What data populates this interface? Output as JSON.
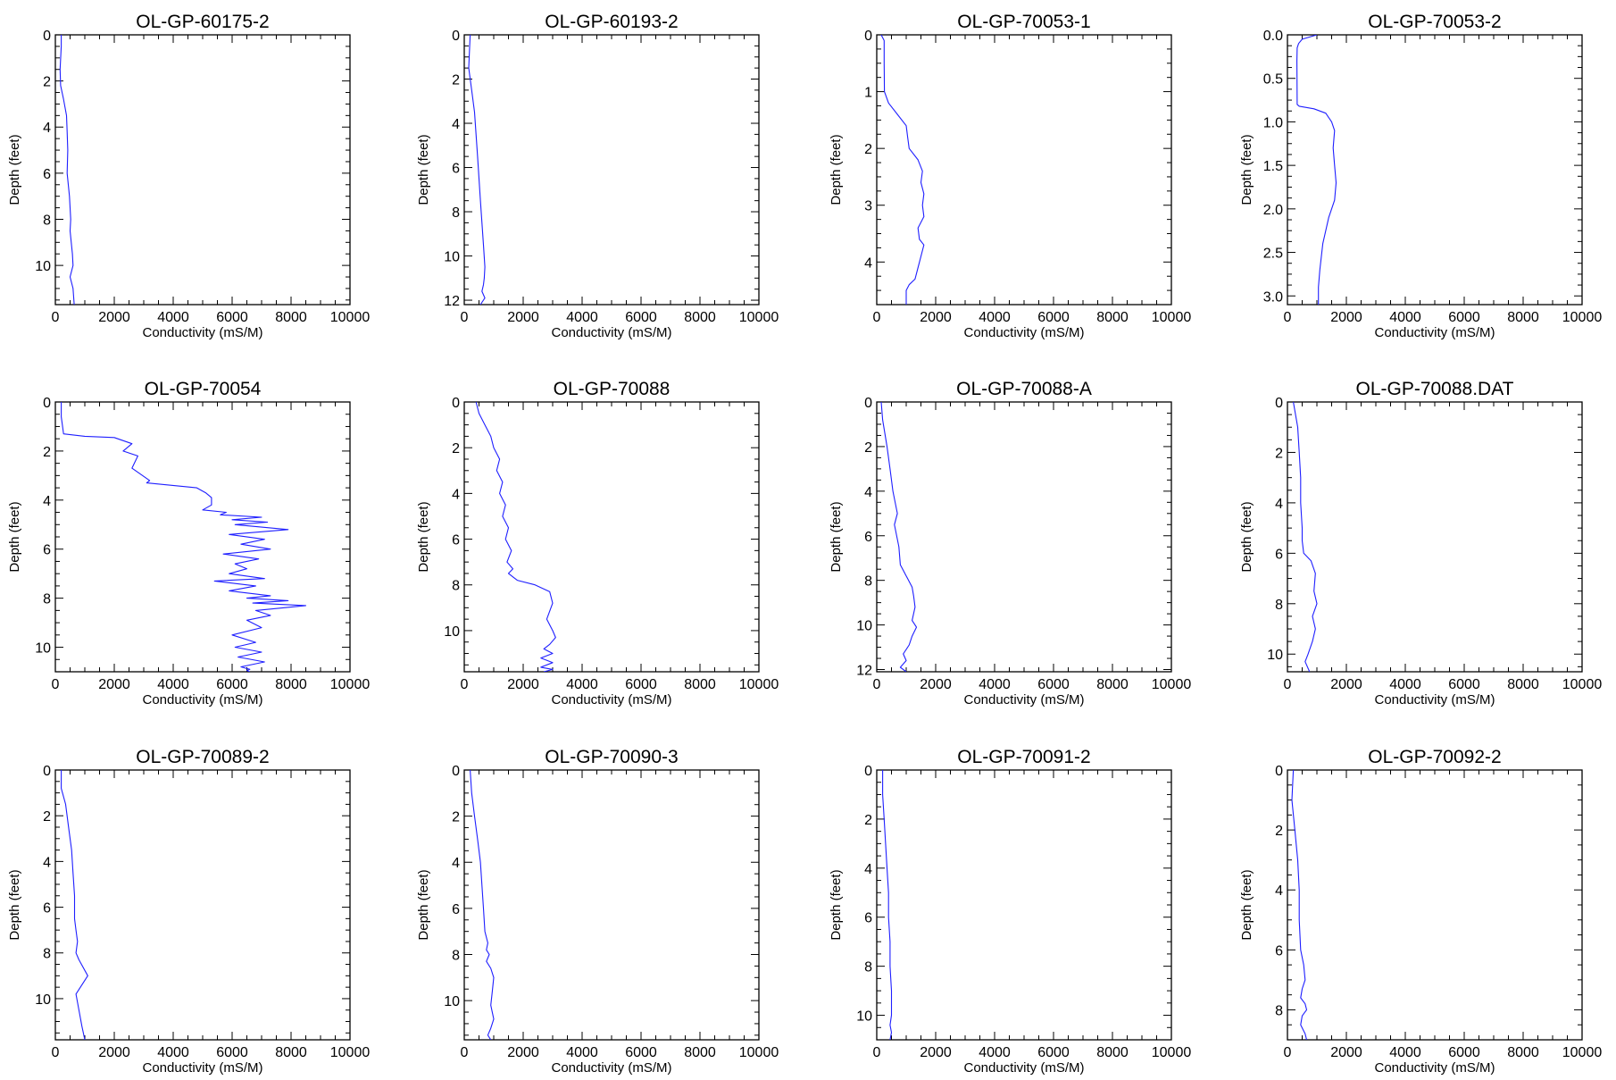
{
  "colors": {
    "line": "#1f1fff",
    "axis": "#000000",
    "background": "#ffffff"
  },
  "layout": {
    "rows": 3,
    "cols": 4
  },
  "chart_data": [
    {
      "type": "line",
      "title": "OL-GP-60175-2",
      "xlabel": "Conductivity (mS/M)",
      "ylabel": "Depth (feet)",
      "xlim": [
        0,
        10000
      ],
      "ylim": [
        0,
        11.7
      ],
      "xticks": [
        "0",
        "2000",
        "4000",
        "6000",
        "8000",
        "10000"
      ],
      "yticks": [
        "0",
        "2",
        "4",
        "6",
        "8",
        "10"
      ],
      "ytick_values": [
        0,
        2,
        4,
        6,
        8,
        10
      ],
      "series": [
        {
          "x": [
            200,
            200,
            160,
            180,
            280,
            380,
            400,
            420,
            400,
            480,
            520,
            500,
            580,
            600,
            500,
            600,
            640
          ],
          "y": [
            0,
            0.5,
            1.5,
            2.2,
            2.8,
            3.5,
            4.2,
            5,
            6,
            7,
            8,
            8.5,
            9.5,
            10,
            10.5,
            11,
            11.7
          ]
        }
      ]
    },
    {
      "type": "line",
      "title": "OL-GP-60193-2",
      "xlabel": "Conductivity (mS/M)",
      "ylabel": "Depth (feet)",
      "xlim": [
        0,
        10000
      ],
      "ylim": [
        0,
        12.2
      ],
      "xticks": [
        "0",
        "2000",
        "4000",
        "6000",
        "8000",
        "10000"
      ],
      "yticks": [
        "0",
        "2",
        "4",
        "6",
        "8",
        "10",
        "12"
      ],
      "ytick_values": [
        0,
        2,
        4,
        6,
        8,
        10,
        12
      ],
      "series": [
        {
          "x": [
            200,
            150,
            250,
            350,
            400,
            450,
            500,
            550,
            600,
            650,
            700,
            680,
            650,
            600,
            700,
            550
          ],
          "y": [
            0,
            1.5,
            2.5,
            3.5,
            4.5,
            5.5,
            6.5,
            7.5,
            8.5,
            9.5,
            10.5,
            11,
            11.3,
            11.6,
            11.9,
            12.2
          ]
        }
      ]
    },
    {
      "type": "line",
      "title": "OL-GP-70053-1",
      "xlabel": "Conductivity (mS/M)",
      "ylabel": "Depth (feet)",
      "xlim": [
        0,
        10000
      ],
      "ylim": [
        0,
        4.75
      ],
      "xticks": [
        "0",
        "2000",
        "4000",
        "6000",
        "8000",
        "10000"
      ],
      "yticks": [
        "0",
        "1",
        "2",
        "3",
        "4"
      ],
      "ytick_values": [
        0,
        1,
        2,
        3,
        4
      ],
      "series": [
        {
          "x": [
            150,
            250,
            250,
            260,
            400,
            700,
            1000,
            1050,
            1100,
            1400,
            1550,
            1500,
            1600,
            1550,
            1600,
            1400,
            1450,
            1600,
            1500,
            1400,
            1300,
            1100,
            1000,
            1000
          ],
          "y": [
            0,
            0.1,
            0.5,
            1.0,
            1.2,
            1.4,
            1.6,
            1.8,
            2.0,
            2.2,
            2.4,
            2.6,
            2.8,
            3.0,
            3.2,
            3.4,
            3.6,
            3.7,
            3.9,
            4.1,
            4.3,
            4.4,
            4.5,
            4.75
          ]
        }
      ]
    },
    {
      "type": "line",
      "title": "OL-GP-70053-2",
      "xlabel": "Conductivity (mS/M)",
      "ylabel": "Depth (feet)",
      "xlim": [
        0,
        10000
      ],
      "ylim": [
        0,
        3.1
      ],
      "xticks": [
        "0",
        "2000",
        "4000",
        "6000",
        "8000",
        "10000"
      ],
      "yticks": [
        "0.0",
        "0.5",
        "1.0",
        "1.5",
        "2.0",
        "2.5",
        "3.0"
      ],
      "ytick_values": [
        0,
        0.5,
        1,
        1.5,
        2,
        2.5,
        3
      ],
      "series": [
        {
          "x": [
            1000,
            500,
            380,
            330,
            320,
            330,
            400,
            900,
            1300,
            1500,
            1600,
            1550,
            1600,
            1650,
            1600,
            1400,
            1200,
            1100,
            1050,
            1050
          ],
          "y": [
            0,
            0.05,
            0.1,
            0.15,
            0.3,
            0.8,
            0.82,
            0.85,
            0.9,
            1.0,
            1.1,
            1.3,
            1.5,
            1.7,
            1.9,
            2.1,
            2.4,
            2.7,
            2.9,
            3.1
          ]
        }
      ]
    },
    {
      "type": "line",
      "title": "OL-GP-70054",
      "xlabel": "Conductivity (mS/M)",
      "ylabel": "Depth (feet)",
      "xlim": [
        0,
        10000
      ],
      "ylim": [
        0,
        11
      ],
      "xticks": [
        "0",
        "2000",
        "4000",
        "6000",
        "8000",
        "10000"
      ],
      "yticks": [
        "0",
        "2",
        "4",
        "6",
        "8",
        "10"
      ],
      "ytick_values": [
        0,
        2,
        4,
        6,
        8,
        10
      ],
      "series": [
        {
          "x": [
            200,
            200,
            280,
            1000,
            2000,
            2600,
            2300,
            2800,
            2600,
            3200,
            3100,
            4800,
            5100,
            5300,
            5300,
            5000,
            5800,
            5600,
            7000,
            6000,
            7200,
            6100,
            7900,
            5900,
            7100,
            6300,
            7300,
            5700,
            6900,
            6100,
            6500,
            5900,
            7100,
            5400,
            6800,
            5900,
            7300,
            6500,
            7900,
            6700,
            8500,
            6800,
            7300,
            6500,
            7000,
            6000,
            6800,
            6100,
            7000,
            6200,
            7100,
            6300,
            6600,
            6500,
            6600
          ],
          "y": [
            0,
            0.6,
            1.3,
            1.4,
            1.45,
            1.7,
            2.0,
            2.2,
            2.7,
            3.2,
            3.3,
            3.5,
            3.7,
            3.9,
            4.2,
            4.4,
            4.5,
            4.6,
            4.7,
            4.8,
            4.9,
            5.0,
            5.2,
            5.4,
            5.6,
            5.8,
            6.0,
            6.2,
            6.4,
            6.6,
            6.8,
            7.0,
            7.2,
            7.3,
            7.5,
            7.7,
            7.9,
            8.0,
            8.1,
            8.2,
            8.3,
            8.5,
            8.7,
            8.9,
            9.2,
            9.5,
            9.8,
            10.0,
            10.2,
            10.4,
            10.6,
            10.8,
            10.9,
            10.95,
            11.0
          ]
        }
      ]
    },
    {
      "type": "line",
      "title": "OL-GP-70088",
      "xlabel": "Conductivity (mS/M)",
      "ylabel": "Depth (feet)",
      "xlim": [
        0,
        10000
      ],
      "ylim": [
        0,
        11.8
      ],
      "xticks": [
        "0",
        "2000",
        "4000",
        "6000",
        "8000",
        "10000"
      ],
      "yticks": [
        "0",
        "2",
        "4",
        "6",
        "8",
        "10"
      ],
      "ytick_values": [
        0,
        2,
        4,
        6,
        8,
        10
      ],
      "series": [
        {
          "x": [
            400,
            500,
            700,
            900,
            1000,
            1200,
            1100,
            1300,
            1200,
            1400,
            1300,
            1500,
            1400,
            1600,
            1450,
            1650,
            1500,
            1700,
            1800,
            2400,
            2900,
            3000,
            2800,
            3000,
            3100,
            2900,
            2700,
            3000,
            2600,
            3000,
            2600,
            3000,
            2700
          ],
          "y": [
            0,
            0.5,
            1.0,
            1.5,
            2.0,
            2.5,
            3.0,
            3.5,
            4.0,
            4.5,
            5.0,
            5.5,
            6.0,
            6.5,
            7.0,
            7.3,
            7.5,
            7.7,
            7.8,
            8.0,
            8.3,
            8.8,
            9.5,
            10.0,
            10.3,
            10.6,
            10.8,
            11.0,
            11.2,
            11.4,
            11.6,
            11.7,
            11.8
          ]
        }
      ]
    },
    {
      "type": "line",
      "title": "OL-GP-70088-A",
      "xlabel": "Conductivity (mS/M)",
      "ylabel": "Depth (feet)",
      "xlim": [
        0,
        10000
      ],
      "ylim": [
        0,
        12.1
      ],
      "xticks": [
        "0",
        "2000",
        "4000",
        "6000",
        "8000",
        "10000"
      ],
      "yticks": [
        "0",
        "2",
        "4",
        "6",
        "8",
        "10",
        "12"
      ],
      "ytick_values": [
        0,
        2,
        4,
        6,
        8,
        10,
        12
      ],
      "series": [
        {
          "x": [
            150,
            200,
            350,
            450,
            550,
            700,
            600,
            750,
            800,
            1000,
            1200,
            1250,
            1300,
            1200,
            1350,
            1200,
            1100,
            900,
            1000,
            800,
            1000
          ],
          "y": [
            0,
            0.8,
            2.0,
            3.0,
            4.0,
            5.0,
            5.5,
            6.5,
            7.3,
            7.8,
            8.3,
            8.7,
            9.2,
            9.8,
            10.1,
            10.5,
            10.9,
            11.3,
            11.6,
            11.9,
            12.1
          ]
        }
      ]
    },
    {
      "type": "line",
      "title": "OL-GP-70088.DAT",
      "xlabel": "Conductivity (mS/M)",
      "ylabel": "Depth (feet)",
      "xlim": [
        0,
        10000
      ],
      "ylim": [
        0,
        10.7
      ],
      "xticks": [
        "0",
        "2000",
        "4000",
        "6000",
        "8000",
        "10000"
      ],
      "yticks": [
        "0",
        "2",
        "4",
        "6",
        "8",
        "10"
      ],
      "ytick_values": [
        0,
        2,
        4,
        6,
        8,
        10
      ],
      "series": [
        {
          "x": [
            200,
            350,
            400,
            450,
            450,
            500,
            500,
            550,
            800,
            950,
            900,
            1000,
            850,
            950,
            850,
            700,
            600,
            750
          ],
          "y": [
            0,
            1.0,
            2.0,
            3.0,
            4.0,
            5.0,
            5.5,
            6.0,
            6.3,
            6.8,
            7.5,
            8.0,
            8.5,
            9.0,
            9.5,
            10.0,
            10.3,
            10.7
          ]
        }
      ]
    },
    {
      "type": "line",
      "title": "OL-GP-70089-2",
      "xlabel": "Conductivity (mS/M)",
      "ylabel": "Depth (feet)",
      "xlim": [
        0,
        10000
      ],
      "ylim": [
        0,
        11.8
      ],
      "xticks": [
        "0",
        "2000",
        "4000",
        "6000",
        "8000",
        "10000"
      ],
      "yticks": [
        "0",
        "2",
        "4",
        "6",
        "8",
        "10"
      ],
      "ytick_values": [
        0,
        2,
        4,
        6,
        8,
        10
      ],
      "series": [
        {
          "x": [
            200,
            200,
            350,
            450,
            550,
            600,
            650,
            650,
            700,
            750,
            700,
            800,
            1100,
            900,
            700,
            800,
            900,
            1000
          ],
          "y": [
            0,
            0.8,
            1.5,
            2.5,
            3.5,
            4.5,
            5.5,
            6.5,
            7.0,
            7.5,
            8.0,
            8.3,
            9.0,
            9.4,
            9.8,
            10.5,
            11.2,
            11.8
          ]
        }
      ]
    },
    {
      "type": "line",
      "title": "OL-GP-70090-3",
      "xlabel": "Conductivity (mS/M)",
      "ylabel": "Depth (feet)",
      "xlim": [
        0,
        10000
      ],
      "ylim": [
        0,
        11.7
      ],
      "xticks": [
        "0",
        "2000",
        "4000",
        "6000",
        "8000",
        "10000"
      ],
      "yticks": [
        "0",
        "2",
        "4",
        "6",
        "8",
        "10"
      ],
      "ytick_values": [
        0,
        2,
        4,
        6,
        8,
        10
      ],
      "series": [
        {
          "x": [
            200,
            250,
            350,
            450,
            550,
            600,
            650,
            700,
            800,
            750,
            850,
            750,
            900,
            1000,
            950,
            900,
            1000,
            900,
            800,
            900
          ],
          "y": [
            0,
            1.0,
            2.0,
            3.0,
            4.0,
            5.0,
            6.0,
            7.0,
            7.5,
            7.8,
            8.0,
            8.3,
            8.6,
            9.0,
            9.6,
            10.2,
            10.8,
            11.2,
            11.5,
            11.7
          ]
        }
      ]
    },
    {
      "type": "line",
      "title": "OL-GP-70091-2",
      "xlabel": "Conductivity (mS/M)",
      "ylabel": "Depth (feet)",
      "xlim": [
        0,
        10000
      ],
      "ylim": [
        0,
        11
      ],
      "xticks": [
        "0",
        "2000",
        "4000",
        "6000",
        "8000",
        "10000"
      ],
      "yticks": [
        "0",
        "2",
        "4",
        "6",
        "8",
        "10"
      ],
      "ytick_values": [
        0,
        2,
        4,
        6,
        8,
        10
      ],
      "series": [
        {
          "x": [
            200,
            200,
            250,
            300,
            350,
            400,
            400,
            450,
            450,
            500,
            500,
            450,
            500,
            450
          ],
          "y": [
            0,
            1.0,
            2.0,
            3.0,
            4.0,
            5.0,
            6.0,
            7.0,
            8.0,
            9.0,
            10.0,
            10.4,
            10.7,
            11.0
          ]
        }
      ]
    },
    {
      "type": "line",
      "title": "OL-GP-70092-2",
      "xlabel": "Conductivity (mS/M)",
      "ylabel": "Depth (feet)",
      "xlim": [
        0,
        10000
      ],
      "ylim": [
        0,
        9
      ],
      "xticks": [
        "0",
        "2000",
        "4000",
        "6000",
        "8000",
        "10000"
      ],
      "yticks": [
        "0",
        "2",
        "4",
        "6",
        "8"
      ],
      "ytick_values": [
        0,
        2,
        4,
        6,
        8
      ],
      "series": [
        {
          "x": [
            200,
            150,
            250,
            350,
            400,
            400,
            450,
            550,
            600,
            500,
            450,
            600,
            650,
            500,
            450,
            600,
            650
          ],
          "y": [
            0,
            1.0,
            2.0,
            3.0,
            4.0,
            5.0,
            6.0,
            6.5,
            7.0,
            7.3,
            7.6,
            7.8,
            8.0,
            8.2,
            8.5,
            8.8,
            9.0
          ]
        }
      ]
    }
  ]
}
